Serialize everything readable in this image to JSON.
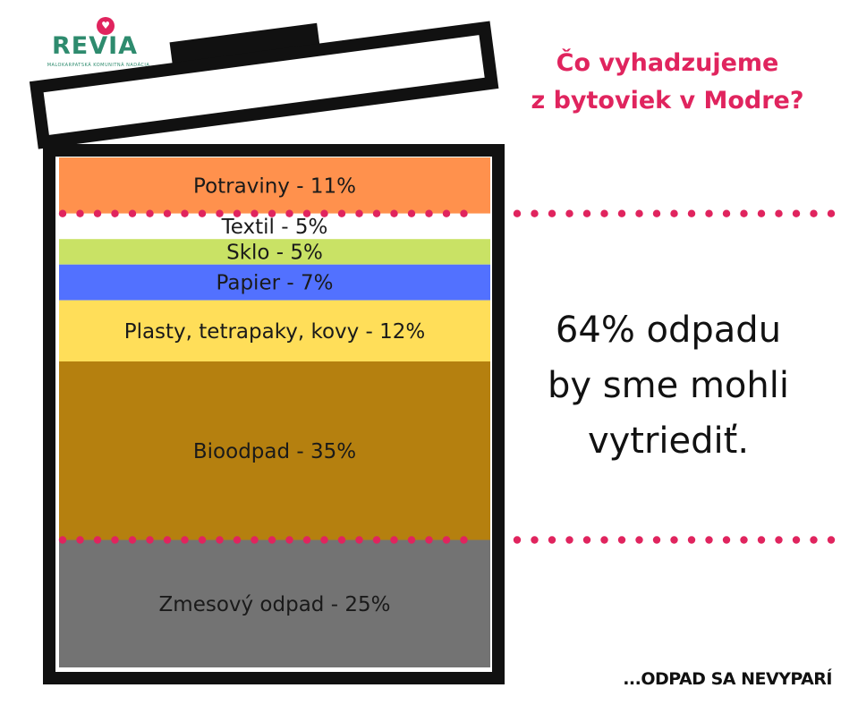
{
  "brand": {
    "name": "REVIA",
    "tagline": "MALOKARPATSKÁ KOMUNITNÁ NADÁCIA"
  },
  "title": {
    "line1": "Čo vyhadzujeme",
    "line2": "z bytoviek v Modre?"
  },
  "claim": {
    "line1": "64% odpadu",
    "line2": "by sme mohli",
    "line3": "vytriediť."
  },
  "footer": "...ODPAD SA NEVYPARÍ",
  "colors": {
    "accent": "#e0245e",
    "bin_outline": "#111111"
  },
  "chart_data": {
    "type": "bar",
    "orientation": "stacked-vertical",
    "categories": [
      "Potraviny",
      "Textil",
      "Sklo",
      "Papier",
      "Plasty, tetrapaky, kovy",
      "Bioodpad",
      "Zmesový odpad"
    ],
    "values": [
      11,
      5,
      5,
      7,
      12,
      35,
      25
    ],
    "labels": [
      "Potraviny - 11%",
      "Textil - 5%",
      "Sklo - 5%",
      "Papier - 7%",
      "Plasty, tetrapaky, kovy - 12%",
      "Bioodpad - 35%",
      "Zmesový odpad - 25%"
    ],
    "colors": [
      "#ff914d",
      "#ffffff",
      "#c9e265",
      "#5271ff",
      "#ffde59",
      "#b5800f",
      "#737373"
    ],
    "unit": "%",
    "total": 100,
    "recyclable_share": 64
  }
}
